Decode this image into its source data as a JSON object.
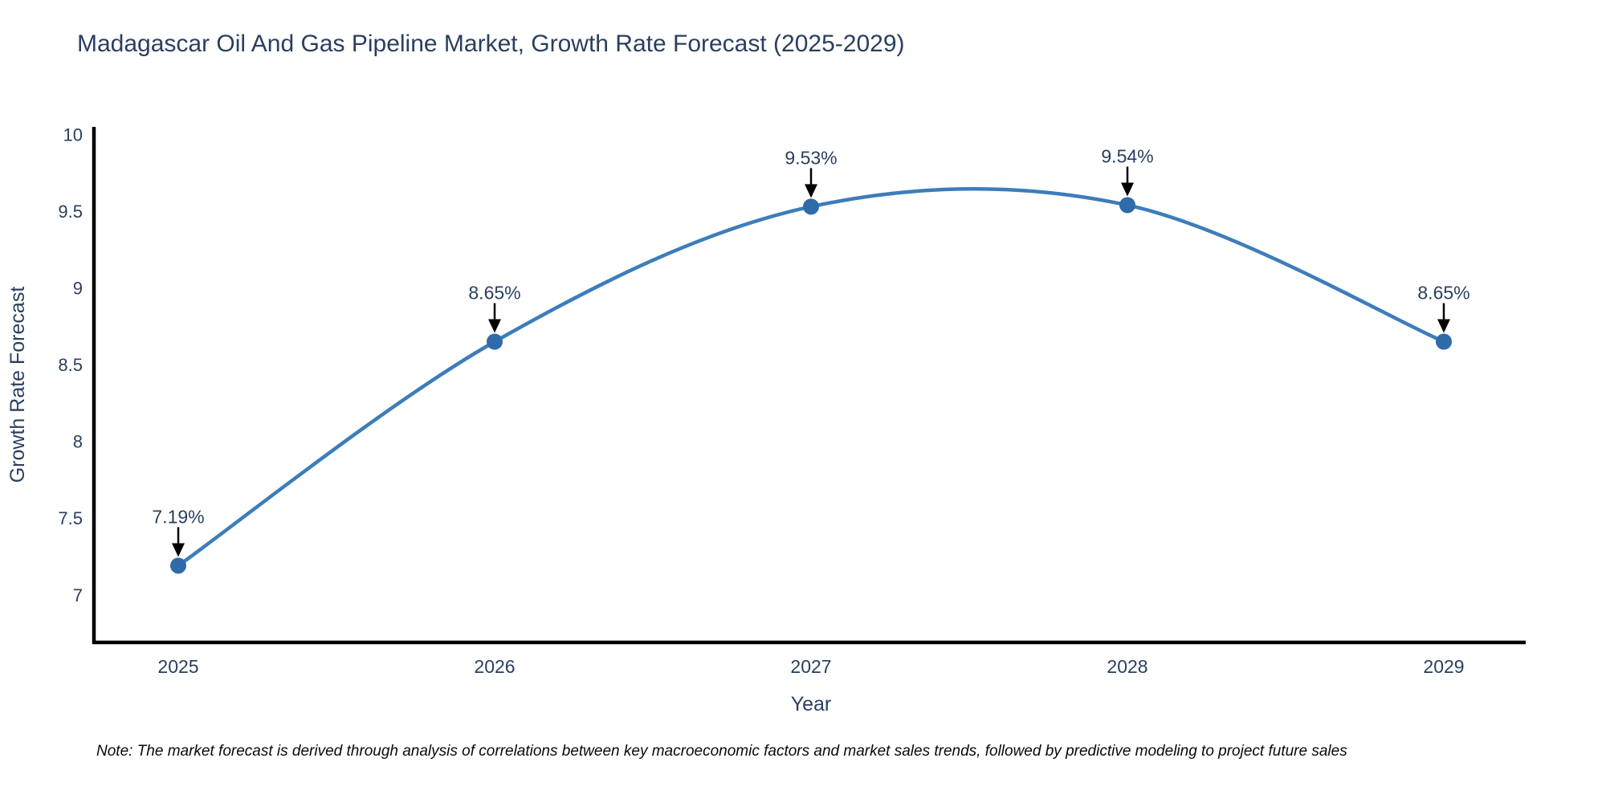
{
  "chart_data": {
    "type": "line",
    "title": "Madagascar Oil And Gas Pipeline Market, Growth Rate Forecast (2025-2029)",
    "xlabel": "Year",
    "ylabel": "Growth Rate Forecast",
    "categories": [
      "2025",
      "2026",
      "2027",
      "2028",
      "2029"
    ],
    "values": [
      7.19,
      8.65,
      9.53,
      9.54,
      8.65
    ],
    "point_labels": [
      "7.19%",
      "8.65%",
      "9.53%",
      "9.54%",
      "8.65%"
    ],
    "ytick_values": [
      7,
      7.5,
      8,
      8.5,
      9,
      9.5,
      10
    ],
    "ytick_labels": [
      "7",
      "7.5",
      "8",
      "8.5",
      "9",
      "9.5",
      "10"
    ],
    "ylim": [
      6.69,
      10.05
    ],
    "line_shape": "spline",
    "grid": false,
    "legend_position": "none",
    "colors": {
      "line": "#3d7db9",
      "marker": "#2f6ba8",
      "axis": "#000000",
      "tick_text": "#2a3f5f",
      "title_text": "#2a3f5f",
      "annotation_text": "#2a3f5f",
      "annotation_arrow": "#000000"
    }
  },
  "note": "Note: The market forecast is derived through analysis of correlations between key macroeconomic factors and market sales trends, followed by predictive modeling to project future sales"
}
